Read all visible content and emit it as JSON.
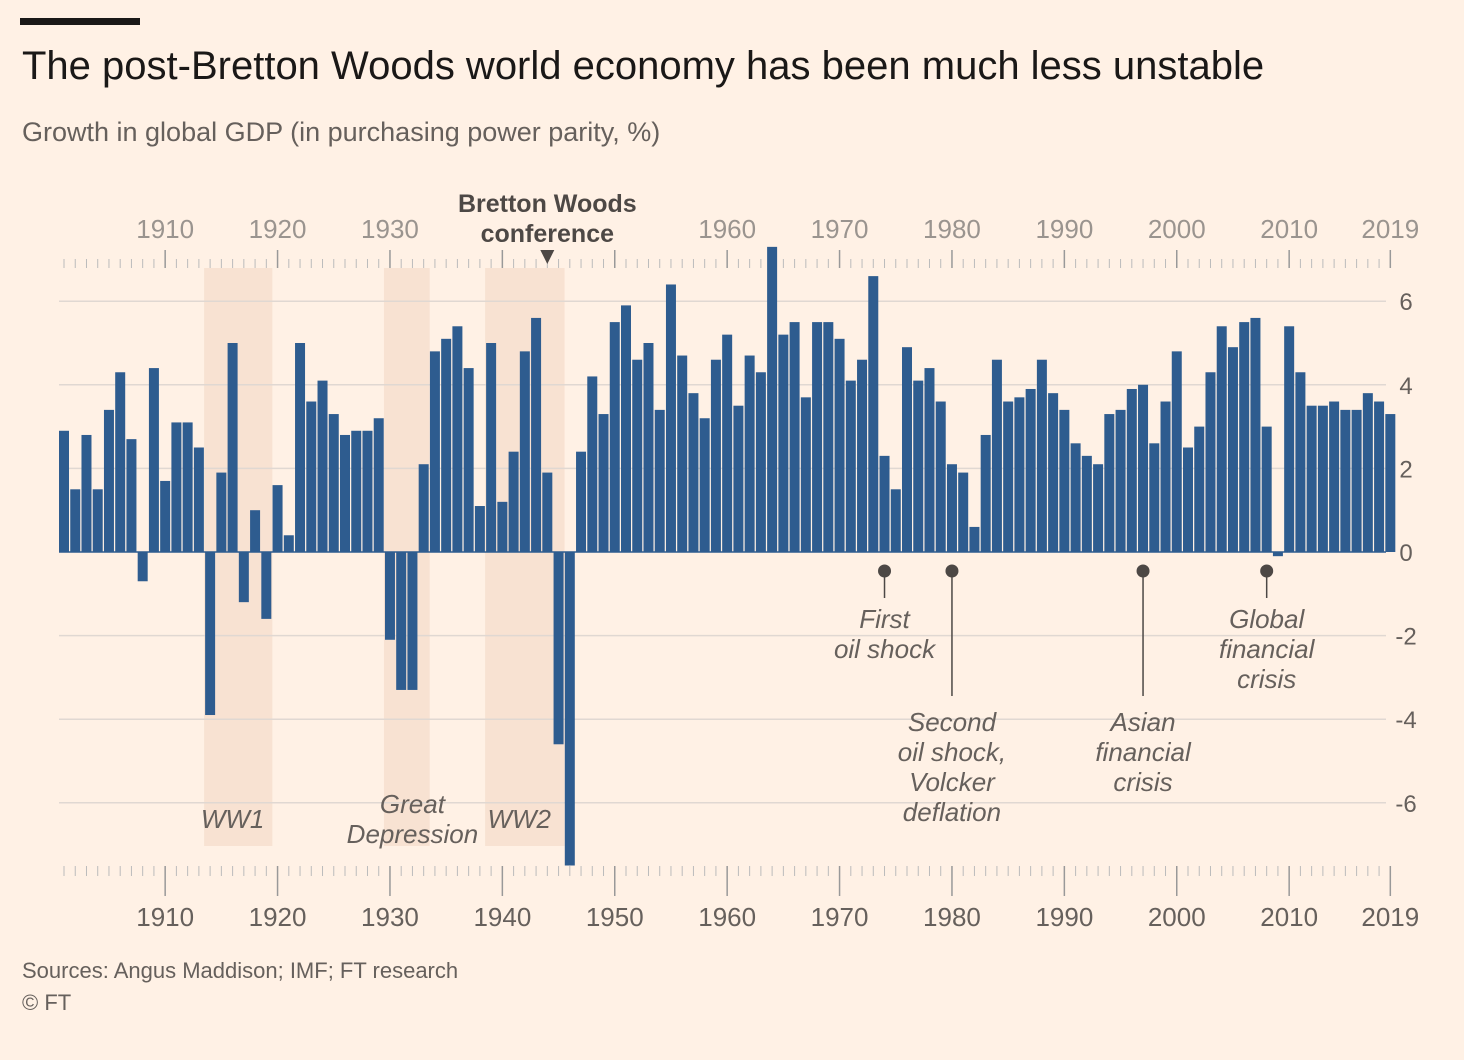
{
  "title": "The post-Bretton Woods world economy has been much less unstable",
  "subtitle": "Growth in global GDP (in purchasing power parity, %)",
  "source": "Sources: Angus Maddison; IMF; FT research",
  "copyright": "© FT",
  "colors": {
    "bar": "#2e5c8f",
    "background": "#fff1e5",
    "shade": "#f6dccb",
    "text": "#66605c",
    "grid": "#e0d8d2"
  },
  "chart_data": {
    "type": "bar",
    "x_start": 1901,
    "x_end": 2019,
    "x_ticks": [
      1910,
      1920,
      1930,
      1940,
      1950,
      1960,
      1970,
      1980,
      1990,
      2000,
      2010,
      2019
    ],
    "top_ticks": [
      "1910",
      "1920",
      "1930",
      "1960",
      "1970",
      "1980",
      "1990",
      "2000",
      "2010",
      "2019"
    ],
    "ylim": [
      -7.5,
      7.3
    ],
    "y_ticks": [
      "6",
      "4",
      "2",
      "0",
      "-2",
      "-4",
      "-6"
    ],
    "y_tick_values": [
      6,
      4,
      2,
      0,
      -2,
      -4,
      -6
    ],
    "x": [
      1901,
      1902,
      1903,
      1904,
      1905,
      1906,
      1907,
      1908,
      1909,
      1910,
      1911,
      1912,
      1913,
      1914,
      1915,
      1916,
      1917,
      1918,
      1919,
      1920,
      1921,
      1922,
      1923,
      1924,
      1925,
      1926,
      1927,
      1928,
      1929,
      1930,
      1931,
      1932,
      1933,
      1934,
      1935,
      1936,
      1937,
      1938,
      1939,
      1940,
      1941,
      1942,
      1943,
      1944,
      1945,
      1946,
      1947,
      1948,
      1949,
      1950,
      1951,
      1952,
      1953,
      1954,
      1955,
      1956,
      1957,
      1958,
      1959,
      1960,
      1961,
      1962,
      1963,
      1964,
      1965,
      1966,
      1967,
      1968,
      1969,
      1970,
      1971,
      1972,
      1973,
      1974,
      1975,
      1976,
      1977,
      1978,
      1979,
      1980,
      1981,
      1982,
      1983,
      1984,
      1985,
      1986,
      1987,
      1988,
      1989,
      1990,
      1991,
      1992,
      1993,
      1994,
      1995,
      1996,
      1997,
      1998,
      1999,
      2000,
      2001,
      2002,
      2003,
      2004,
      2005,
      2006,
      2007,
      2008,
      2009,
      2010,
      2011,
      2012,
      2013,
      2014,
      2015,
      2016,
      2017,
      2018,
      2019
    ],
    "values": [
      2.9,
      1.5,
      2.8,
      1.5,
      3.4,
      4.3,
      2.7,
      -0.7,
      4.4,
      1.7,
      3.1,
      3.1,
      2.5,
      -3.9,
      1.9,
      5.0,
      -1.2,
      1.0,
      -1.6,
      1.6,
      0.4,
      5.0,
      3.6,
      4.1,
      3.3,
      2.8,
      2.9,
      2.9,
      3.2,
      -2.1,
      -3.3,
      -3.3,
      2.1,
      4.8,
      5.1,
      5.4,
      4.4,
      1.1,
      5.0,
      1.2,
      2.4,
      4.8,
      5.6,
      1.9,
      -4.6,
      -7.5,
      2.4,
      4.2,
      3.3,
      5.5,
      5.9,
      4.6,
      5.0,
      3.4,
      6.4,
      4.7,
      3.8,
      3.2,
      4.6,
      5.2,
      3.5,
      4.7,
      4.3,
      7.3,
      5.2,
      5.5,
      3.7,
      5.5,
      5.5,
      5.1,
      4.1,
      4.6,
      6.6,
      2.3,
      1.5,
      4.9,
      4.1,
      4.4,
      3.6,
      2.1,
      1.9,
      0.6,
      2.8,
      4.6,
      3.6,
      3.7,
      3.9,
      4.6,
      3.8,
      3.4,
      2.6,
      2.3,
      2.1,
      3.3,
      3.4,
      3.9,
      4.0,
      2.6,
      3.6,
      4.8,
      2.5,
      3.0,
      4.3,
      5.4,
      4.9,
      5.5,
      5.6,
      3.0,
      -0.1,
      5.4,
      4.3,
      3.5,
      3.5,
      3.6,
      3.4,
      3.4,
      3.8,
      3.6,
      3.3
    ],
    "shaded_periods": [
      {
        "start": 1914,
        "end": 1919,
        "label": "WW1"
      },
      {
        "start": 1930,
        "end": 1933,
        "label_lines": [
          "Great",
          "Depression"
        ]
      },
      {
        "start": 1939,
        "end": 1945,
        "label": "WW2"
      }
    ],
    "top_annotation": {
      "year": 1944,
      "lines": [
        "Bretton Woods",
        "conference"
      ]
    },
    "annotations": [
      {
        "year": 1974,
        "lines": [
          "First",
          "oil shock"
        ],
        "side": "short"
      },
      {
        "year": 1980,
        "lines": [
          "Second",
          "oil shock,",
          "Volcker",
          "deflation"
        ],
        "side": "long"
      },
      {
        "year": 1997,
        "lines": [
          "Asian",
          "financial",
          "crisis"
        ],
        "side": "long"
      },
      {
        "year": 2008,
        "lines": [
          "Global",
          "financial",
          "crisis"
        ],
        "side": "short"
      }
    ]
  }
}
